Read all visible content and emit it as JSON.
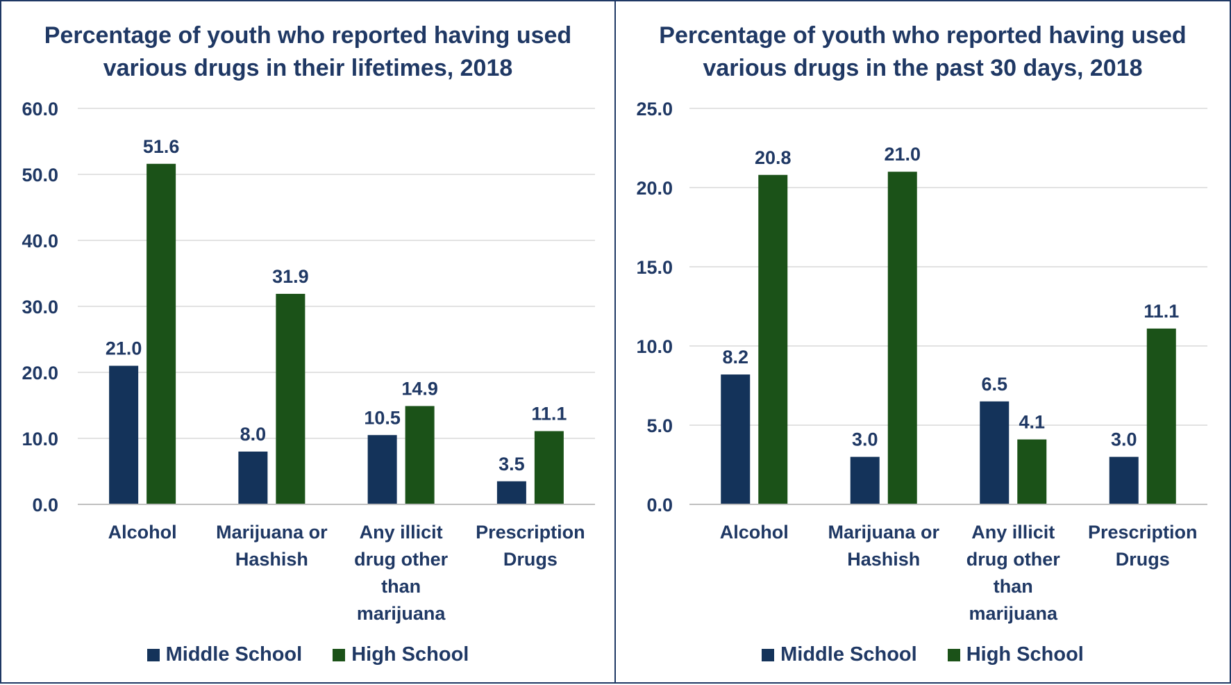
{
  "colors": {
    "middle_school": "#14335a",
    "high_school": "#1b5218",
    "text": "#1f3864",
    "grid": "#d9d9d9"
  },
  "chart_data": [
    {
      "type": "bar",
      "title": "Percentage of youth who reported having used various drugs in their lifetimes, 2018",
      "categories": [
        "Alcohol",
        "Marijuana or Hashish",
        "Any illicit drug other than marijuana",
        "Prescription Drugs"
      ],
      "category_lines": [
        [
          "Alcohol"
        ],
        [
          "Marijuana or",
          "Hashish"
        ],
        [
          "Any illicit",
          "drug other",
          "than",
          "marijuana"
        ],
        [
          "Prescription",
          "Drugs"
        ]
      ],
      "series": [
        {
          "name": "Middle School",
          "values": [
            21.0,
            8.0,
            10.5,
            3.5
          ],
          "labels": [
            "21.0",
            "8.0",
            "10.5",
            "3.5"
          ]
        },
        {
          "name": "High School",
          "values": [
            51.6,
            31.9,
            14.9,
            11.1
          ],
          "labels": [
            "51.6",
            "31.9",
            "14.9",
            "11.1"
          ]
        }
      ],
      "ylim": [
        0,
        60
      ],
      "yticks": [
        "0.0",
        "10.0",
        "20.0",
        "30.0",
        "40.0",
        "50.0",
        "60.0"
      ],
      "xlabel": "",
      "ylabel": "",
      "grid": true,
      "legend": "bottom"
    },
    {
      "type": "bar",
      "title": "Percentage of youth who reported having used various drugs in the past 30 days, 2018",
      "categories": [
        "Alcohol",
        "Marijuana or Hashish",
        "Any illicit drug other than marijuana",
        "Prescription Drugs"
      ],
      "category_lines": [
        [
          "Alcohol"
        ],
        [
          "Marijuana or",
          "Hashish"
        ],
        [
          "Any illicit",
          "drug other",
          "than",
          "marijuana"
        ],
        [
          "Prescription",
          "Drugs"
        ]
      ],
      "series": [
        {
          "name": "Middle School",
          "values": [
            8.2,
            3.0,
            6.5,
            3.0
          ],
          "labels": [
            "8.2",
            "3.0",
            "6.5",
            "3.0"
          ]
        },
        {
          "name": "High School",
          "values": [
            20.8,
            21.0,
            4.1,
            11.1
          ],
          "labels": [
            "20.8",
            "21.0",
            "4.1",
            "11.1"
          ]
        }
      ],
      "ylim": [
        0,
        25
      ],
      "yticks": [
        "0.0",
        "5.0",
        "10.0",
        "15.0",
        "20.0",
        "25.0"
      ],
      "xlabel": "",
      "ylabel": "",
      "grid": true,
      "legend": "bottom"
    }
  ]
}
